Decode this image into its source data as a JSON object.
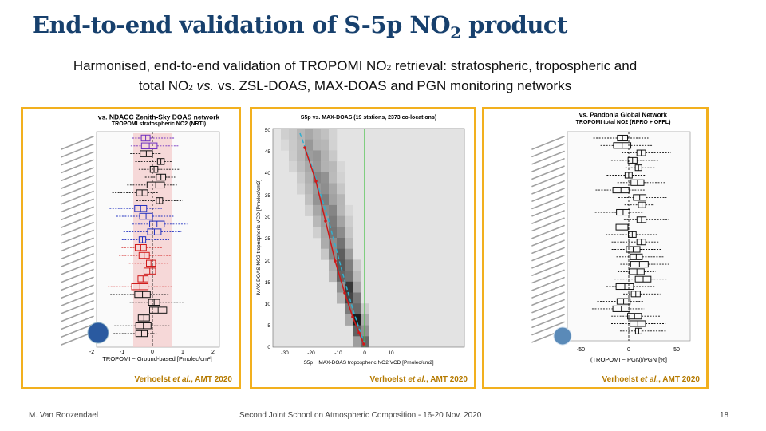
{
  "slide": {
    "title_main": "End-to-end validation of S-5p NO",
    "title_sub": "2",
    "title_tail": " product",
    "subtitle_a": "Harmonised, end-to-end validation of TROPOMI NO",
    "subtitle_b": " retrieval: stratospheric, tropospheric and",
    "subtitle_c": "total NO",
    "subtitle_d": " vs. ZSL-DOAS, MAX-DOAS and PGN monitoring networks",
    "subscript": "2",
    "subtitle_vs": "vs."
  },
  "panels": [
    {
      "heading1": "vs. NDACC Zenith-Sky DOAS network",
      "heading2": "TROPOMI stratospheric NO2 (NRTI)",
      "xlabel": "TROPOMI − Ground-based [Pmolec/cm²]",
      "xticks": [
        "-2",
        "-1",
        "0",
        "1",
        "2"
      ],
      "credit_name": "Verhoelst ",
      "credit_etal": "et al.",
      "credit_tail": ", AMT 2020"
    },
    {
      "heading1": "S5p vs. MAX-DOAS (19 stations, 2373 co-locations)",
      "xlabel": "S5p − MAX-DOAS tropospheric NO2 VCD [Pmolec/cm2]",
      "ylabel": "MAX-DOAS NO2 tropospheric VCD [Pmolec/cm2]",
      "xticks": [
        "-30",
        "-20",
        "-10",
        "0",
        "10"
      ],
      "yticks": [
        "50",
        "45",
        "40",
        "35",
        "30",
        "25",
        "20",
        "15",
        "10",
        "5",
        "0"
      ],
      "credit_name": "Verhoelst ",
      "credit_etal": "et al.",
      "credit_tail": ", AMT 2020"
    },
    {
      "heading1": "vs. Pandonia Global Network",
      "heading2": "TROPOMI total NO2 (RPRO + OFFL)",
      "xlabel": "(TROPOMI − PGN)/PGN [%]",
      "xticks": [
        "-50",
        "0",
        "50"
      ],
      "credit_name": "Verhoelst ",
      "credit_etal": "et al.",
      "credit_tail": ", AMT 2020"
    }
  ],
  "footer": {
    "left": "M. Van Roozendael",
    "center": "Second Joint School on Atmospheric Composition - 16-20 Nov. 2020",
    "page": "18"
  },
  "colors": {
    "title": "#17406d",
    "frame": "#f2b01e",
    "credit": "#b57a00",
    "box_black": "#111111",
    "box_red": "#d01818",
    "box_blue": "#2030c0",
    "box_purple": "#7030c0",
    "mean_line": "#d01818",
    "median_line": "#30b0d0",
    "zero_line": "#40c040"
  }
}
